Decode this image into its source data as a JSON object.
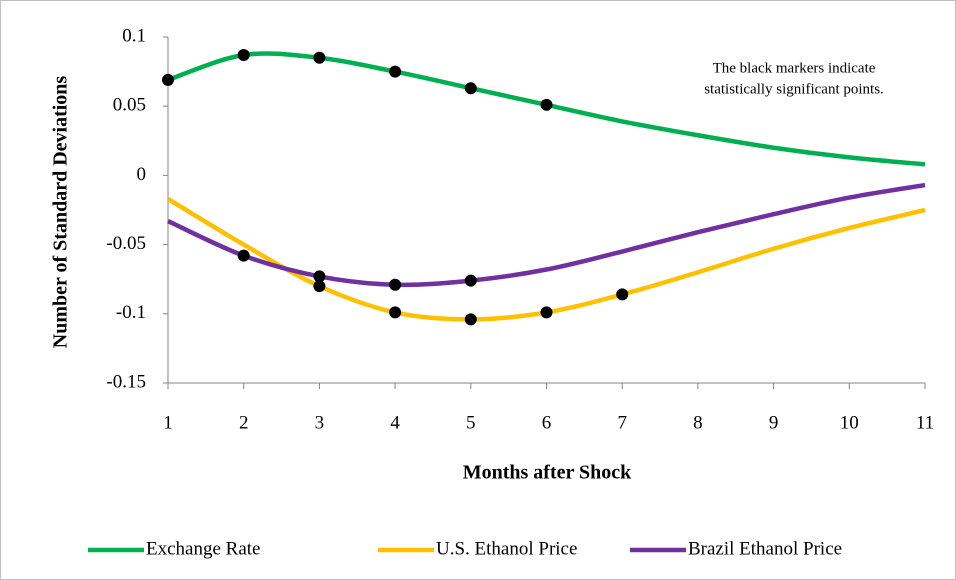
{
  "chart_data": {
    "type": "line",
    "x_label": "Months after Shock",
    "y_label": "Number of Standard Deviations",
    "annotation": [
      "The black markers  indicate",
      "statistically significant points."
    ],
    "x": [
      1,
      2,
      3,
      4,
      5,
      6,
      7,
      8,
      9,
      10,
      11
    ],
    "xlim": [
      1,
      11
    ],
    "xticks": [
      1,
      2,
      3,
      4,
      5,
      6,
      7,
      8,
      9,
      10,
      11
    ],
    "ylim": [
      -0.15,
      0.1
    ],
    "yticks": [
      0.1,
      0.05,
      0,
      -0.05,
      -0.1,
      -0.15
    ],
    "grid": false,
    "legend": "bottom",
    "marker_color": "#000000",
    "series": [
      {
        "name": "Exchange Rate",
        "color": "#00b050",
        "values": [
          0.069,
          0.087,
          0.085,
          0.075,
          0.063,
          0.051,
          0.039,
          0.029,
          0.02,
          0.013,
          0.008
        ],
        "significant": [
          true,
          true,
          true,
          true,
          true,
          true,
          false,
          false,
          false,
          false,
          false
        ]
      },
      {
        "name": "U.S. Ethanol Price",
        "color": "#ffc000",
        "values": [
          -0.017,
          -0.05,
          -0.08,
          -0.099,
          -0.104,
          -0.099,
          -0.086,
          -0.07,
          -0.053,
          -0.038,
          -0.025
        ],
        "significant": [
          false,
          false,
          true,
          true,
          true,
          true,
          true,
          false,
          false,
          false,
          false
        ]
      },
      {
        "name": "Brazil Ethanol Price",
        "color": "#7030a0",
        "values": [
          -0.033,
          -0.058,
          -0.073,
          -0.079,
          -0.076,
          -0.068,
          -0.055,
          -0.041,
          -0.028,
          -0.016,
          -0.007
        ],
        "significant": [
          false,
          true,
          true,
          true,
          true,
          false,
          false,
          false,
          false,
          false,
          false
        ]
      }
    ]
  }
}
